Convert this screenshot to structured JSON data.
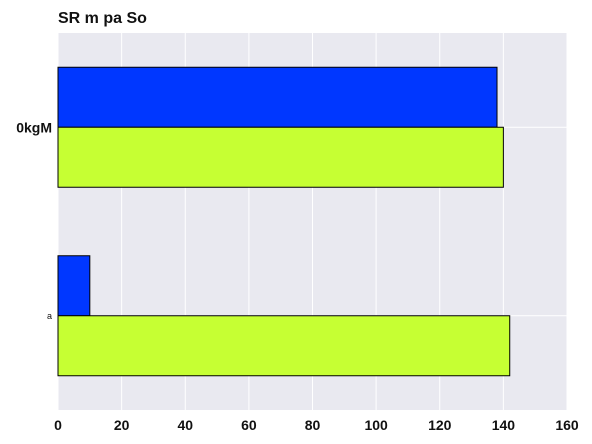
{
  "chart_data": {
    "type": "bar",
    "orientation": "horizontal",
    "title": "SR m pa So",
    "xlabel": "",
    "ylabel": "",
    "categories": [
      "0kgM",
      "a"
    ],
    "series": [
      {
        "color": "#c6ff33",
        "values": [
          140,
          142
        ]
      },
      {
        "color": "#0037ff",
        "values": [
          138,
          10
        ]
      }
    ],
    "xlim": [
      0,
      160
    ],
    "xticks": [
      0,
      20,
      40,
      60,
      80,
      100,
      120,
      140,
      160
    ],
    "grid": true,
    "legend": "none",
    "background": "#e9e9f0"
  }
}
